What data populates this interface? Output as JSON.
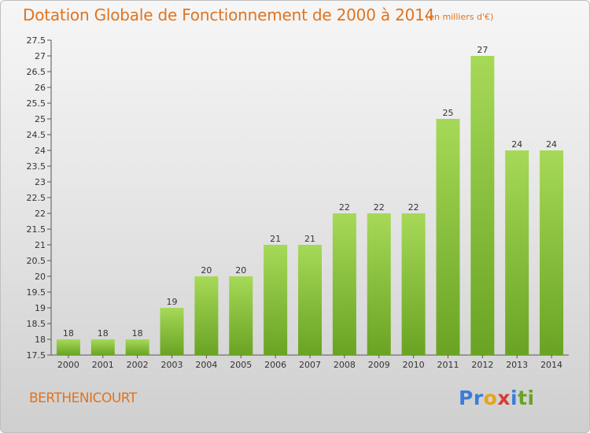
{
  "title": "Dotation Globale de Fonctionnement de 2000 à 2014",
  "subtitle": "(en milliers d'€)",
  "commune": "BERTHENICOURT",
  "logo": {
    "letters": [
      "P",
      "r",
      "o",
      "x",
      "i",
      "t",
      "i"
    ],
    "colors": [
      "#3b7dd8",
      "#3b7dd8",
      "#e8a317",
      "#d93a3a",
      "#3b7dd8",
      "#6aa22c",
      "#6aa22c"
    ]
  },
  "colors": {
    "bar_light": "#a6d957",
    "bar_dark": "#6aa323",
    "title": "#e0731f"
  },
  "chart_data": {
    "type": "bar",
    "categories": [
      "2000",
      "2001",
      "2002",
      "2003",
      "2004",
      "2005",
      "2006",
      "2007",
      "2008",
      "2009",
      "2010",
      "2011",
      "2012",
      "2013",
      "2014"
    ],
    "values": [
      18,
      18,
      18,
      19,
      20,
      20,
      21,
      21,
      22,
      22,
      22,
      25,
      27,
      24,
      24
    ],
    "ylim": [
      17.5,
      27.5
    ],
    "yticks": [
      "17.5",
      "18",
      "18.5",
      "19",
      "19.5",
      "20",
      "20.5",
      "21",
      "21.5",
      "22",
      "22.5",
      "23",
      "23.5",
      "24",
      "24.5",
      "25",
      "25.5",
      "26",
      "26.5",
      "27",
      "27.5"
    ],
    "grid": false,
    "xlabel": "",
    "ylabel": ""
  }
}
